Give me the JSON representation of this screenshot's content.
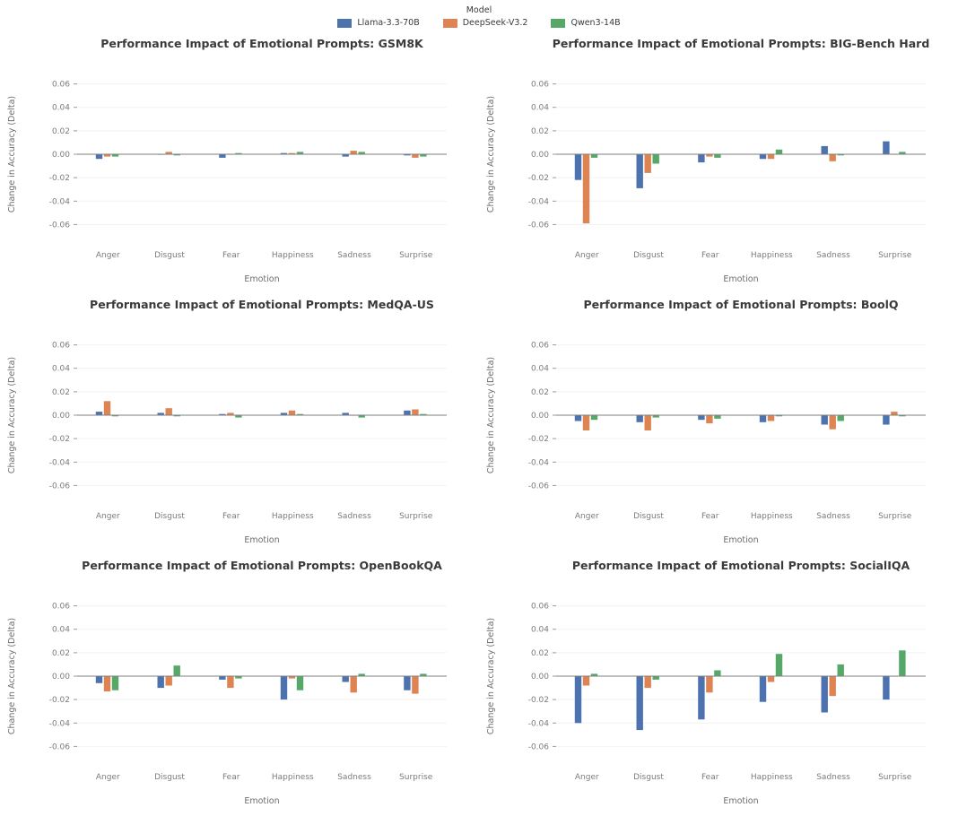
{
  "figure": {
    "legend": {
      "title": "Model",
      "entries": [
        {
          "label": "Llama-3.3-70B",
          "color": "#4c72b0"
        },
        {
          "label": "DeepSeek-V3.2",
          "color": "#dd8452"
        },
        {
          "label": "Qwen3-14B",
          "color": "#55a868"
        }
      ]
    }
  },
  "chart_data": [
    {
      "type": "bar",
      "title": "Performance Impact of Emotional Prompts: GSM8K",
      "xlabel": "Emotion",
      "ylabel": "Change in Accuracy (Delta)",
      "ylim": [
        -0.075,
        0.075
      ],
      "yticks": [
        -0.06,
        -0.04,
        -0.02,
        0,
        0.02,
        0.04,
        0.06
      ],
      "categories": [
        "Anger",
        "Disgust",
        "Fear",
        "Happiness",
        "Sadness",
        "Surprise"
      ],
      "series": [
        {
          "name": "Llama-3.3-70B",
          "color": "#4c72b0",
          "values": [
            -0.004,
            0.0,
            -0.003,
            0.001,
            -0.002,
            -0.001
          ]
        },
        {
          "name": "DeepSeek-V3.2",
          "color": "#dd8452",
          "values": [
            -0.002,
            0.002,
            0.0,
            0.001,
            0.003,
            -0.003
          ]
        },
        {
          "name": "Qwen3-14B",
          "color": "#55a868",
          "values": [
            -0.002,
            -0.001,
            0.001,
            0.002,
            0.002,
            -0.002
          ]
        }
      ]
    },
    {
      "type": "bar",
      "title": "Performance Impact of Emotional Prompts: BIG-Bench Hard",
      "xlabel": "Emotion",
      "ylabel": "Change in Accuracy (Delta)",
      "ylim": [
        -0.075,
        0.075
      ],
      "yticks": [
        -0.06,
        -0.04,
        -0.02,
        0,
        0.02,
        0.04,
        0.06
      ],
      "categories": [
        "Anger",
        "Disgust",
        "Fear",
        "Happiness",
        "Sadness",
        "Surprise"
      ],
      "series": [
        {
          "name": "Llama-3.3-70B",
          "color": "#4c72b0",
          "values": [
            -0.022,
            -0.029,
            -0.007,
            -0.004,
            0.007,
            0.011
          ]
        },
        {
          "name": "DeepSeek-V3.2",
          "color": "#dd8452",
          "values": [
            -0.059,
            -0.016,
            -0.002,
            -0.004,
            -0.006,
            0.0
          ]
        },
        {
          "name": "Qwen3-14B",
          "color": "#55a868",
          "values": [
            -0.003,
            -0.008,
            -0.003,
            0.004,
            -0.001,
            0.002
          ]
        }
      ]
    },
    {
      "type": "bar",
      "title": "Performance Impact of Emotional Prompts: MedQA-US",
      "xlabel": "Emotion",
      "ylabel": "Change in Accuracy (Delta)",
      "ylim": [
        -0.075,
        0.075
      ],
      "yticks": [
        -0.06,
        -0.04,
        -0.02,
        0,
        0.02,
        0.04,
        0.06
      ],
      "categories": [
        "Anger",
        "Disgust",
        "Fear",
        "Happiness",
        "Sadness",
        "Surprise"
      ],
      "series": [
        {
          "name": "Llama-3.3-70B",
          "color": "#4c72b0",
          "values": [
            0.003,
            0.002,
            0.001,
            0.002,
            0.002,
            0.004
          ]
        },
        {
          "name": "DeepSeek-V3.2",
          "color": "#dd8452",
          "values": [
            0.012,
            0.006,
            0.002,
            0.004,
            0.0,
            0.005
          ]
        },
        {
          "name": "Qwen3-14B",
          "color": "#55a868",
          "values": [
            -0.001,
            -0.001,
            -0.002,
            0.001,
            -0.002,
            0.001
          ]
        }
      ]
    },
    {
      "type": "bar",
      "title": "Performance Impact of Emotional Prompts: BoolQ",
      "xlabel": "Emotion",
      "ylabel": "Change in Accuracy (Delta)",
      "ylim": [
        -0.075,
        0.075
      ],
      "yticks": [
        -0.06,
        -0.04,
        -0.02,
        0,
        0.02,
        0.04,
        0.06
      ],
      "categories": [
        "Anger",
        "Disgust",
        "Fear",
        "Happiness",
        "Sadness",
        "Surprise"
      ],
      "series": [
        {
          "name": "Llama-3.3-70B",
          "color": "#4c72b0",
          "values": [
            -0.005,
            -0.006,
            -0.004,
            -0.006,
            -0.008,
            -0.008
          ]
        },
        {
          "name": "DeepSeek-V3.2",
          "color": "#dd8452",
          "values": [
            -0.013,
            -0.013,
            -0.007,
            -0.005,
            -0.012,
            0.003
          ]
        },
        {
          "name": "Qwen3-14B",
          "color": "#55a868",
          "values": [
            -0.004,
            -0.002,
            -0.003,
            -0.001,
            -0.005,
            -0.001
          ]
        }
      ]
    },
    {
      "type": "bar",
      "title": "Performance Impact of Emotional Prompts: OpenBookQA",
      "xlabel": "Emotion",
      "ylabel": "Change in Accuracy (Delta)",
      "ylim": [
        -0.075,
        0.075
      ],
      "yticks": [
        -0.06,
        -0.04,
        -0.02,
        0,
        0.02,
        0.04,
        0.06
      ],
      "categories": [
        "Anger",
        "Disgust",
        "Fear",
        "Happiness",
        "Sadness",
        "Surprise"
      ],
      "series": [
        {
          "name": "Llama-3.3-70B",
          "color": "#4c72b0",
          "values": [
            -0.006,
            -0.01,
            -0.003,
            -0.02,
            -0.005,
            -0.012
          ]
        },
        {
          "name": "DeepSeek-V3.2",
          "color": "#dd8452",
          "values": [
            -0.013,
            -0.008,
            -0.01,
            -0.002,
            -0.014,
            -0.015
          ]
        },
        {
          "name": "Qwen3-14B",
          "color": "#55a868",
          "values": [
            -0.012,
            0.009,
            -0.002,
            -0.012,
            0.002,
            0.002
          ]
        }
      ]
    },
    {
      "type": "bar",
      "title": "Performance Impact of Emotional Prompts: SocialIQA",
      "xlabel": "Emotion",
      "ylabel": "Change in Accuracy (Delta)",
      "ylim": [
        -0.075,
        0.075
      ],
      "yticks": [
        -0.06,
        -0.04,
        -0.02,
        0,
        0.02,
        0.04,
        0.06
      ],
      "categories": [
        "Anger",
        "Disgust",
        "Fear",
        "Happiness",
        "Sadness",
        "Surprise"
      ],
      "series": [
        {
          "name": "Llama-3.3-70B",
          "color": "#4c72b0",
          "values": [
            -0.04,
            -0.046,
            -0.037,
            -0.022,
            -0.031,
            -0.02
          ]
        },
        {
          "name": "DeepSeek-V3.2",
          "color": "#dd8452",
          "values": [
            -0.008,
            -0.01,
            -0.014,
            -0.005,
            -0.017,
            0.0
          ]
        },
        {
          "name": "Qwen3-14B",
          "color": "#55a868",
          "values": [
            0.002,
            -0.003,
            0.005,
            0.019,
            0.01,
            0.022
          ]
        }
      ]
    }
  ]
}
